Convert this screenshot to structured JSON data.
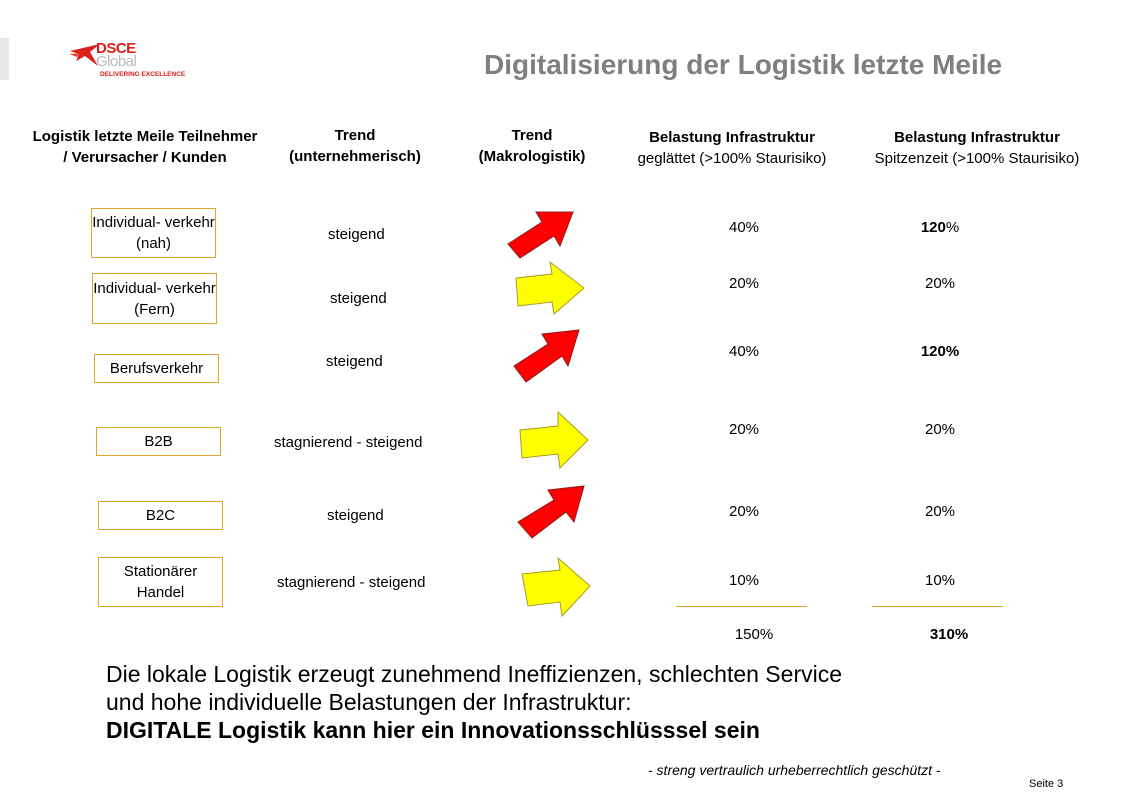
{
  "logo": {
    "line1": "DSCE",
    "line2": "Global",
    "line3": "DELIVERING EXCELLENCE"
  },
  "title": "Digitalisierung der Logistik letzte Meile",
  "headers": {
    "col1": "Logistik  letzte Meile Teilnehmer  / Verursacher  / Kunden",
    "col2": "Trend (unternehmerisch)",
    "col3": "Trend (Makrologistik)",
    "col4_title": "Belastung  Infrastruktur",
    "col4_sub": "geglättet  (>100%  Staurisiko)",
    "col5_title": "Belastung  Infrastruktur",
    "col5_sub": "Spitzenzeit  (>100%  Staurisiko)"
  },
  "colors": {
    "accent_border": "#e2a42a",
    "arrow_red": "#ff0000",
    "arrow_yellow": "#ffff00",
    "title_gray": "#7f7f7f"
  },
  "rows": [
    {
      "participant": "Individual- verkehr   (nah)",
      "trend": "steigend",
      "arrow": "red-arrow-icon",
      "smoothed": "40%",
      "peak_num": "120",
      "peak_unit": "%"
    },
    {
      "participant": "Individual- verkehr  (Fern)",
      "trend": "steigend",
      "arrow": "yellow-arrow-icon",
      "smoothed": "20%",
      "peak_num": "",
      "peak_unit": "20%"
    },
    {
      "participant": "Berufsverkehr",
      "trend": "steigend",
      "arrow": "red-arrow-icon",
      "smoothed": "40%",
      "peak_num": "120%",
      "peak_unit": ""
    },
    {
      "participant": "B2B",
      "trend": "stagnierend  - steigend",
      "arrow": "yellow-arrow-icon",
      "smoothed": "20%",
      "peak_num": "",
      "peak_unit": "20%"
    },
    {
      "participant": "B2C",
      "trend": "steigend",
      "arrow": "red-arrow-icon",
      "smoothed": "20%",
      "peak_num": "",
      "peak_unit": "20%"
    },
    {
      "participant": "Stationärer Handel",
      "trend": "stagnierend  - steigend",
      "arrow": "yellow-arrow-icon",
      "smoothed": "10%",
      "peak_num": "",
      "peak_unit": "10%"
    }
  ],
  "totals": {
    "smoothed": "150%",
    "peak": "310%"
  },
  "summary": {
    "line1": "Die lokale Logistik erzeugt zunehmend Ineffizienzen, schlechten Service",
    "line2": "und hohe individuelle Belastungen der Infrastruktur:",
    "line3": "DIGITALE Logistik  kann hier ein Innovationsschlüsssel sein"
  },
  "footer": "- streng vertraulich  urheberrechtlich  geschützt -",
  "page": "Seite 3"
}
